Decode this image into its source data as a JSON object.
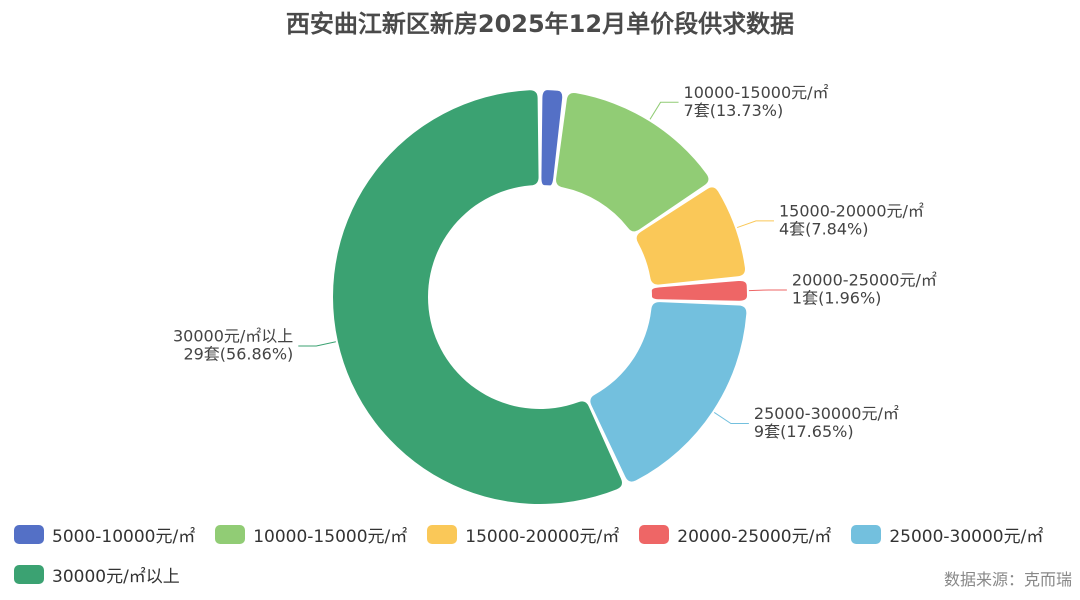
{
  "chart_data": {
    "type": "pie",
    "title": "西安曲江新区新房2025年12月单价段供求数据",
    "categories": [
      "5000-10000元/㎡",
      "10000-15000元/㎡",
      "15000-20000元/㎡",
      "20000-25000元/㎡",
      "25000-30000元/㎡",
      "30000元/㎡以上"
    ],
    "values": [
      1,
      7,
      4,
      1,
      9,
      29
    ],
    "percent_labels": [
      "1.96%",
      "13.73%",
      "7.84%",
      "1.96%",
      "17.65%",
      "56.86%"
    ],
    "unit": "套",
    "data_labels": [
      "",
      "10000-15000元/㎡\n7套(13.73%)",
      "15000-20000元/㎡\n4套(7.84%)",
      "20000-25000元/㎡\n1套(1.96%)",
      "25000-30000元/㎡\n9套(17.65%)",
      "30000元/㎡以上\n29套(56.86%)"
    ],
    "colors": [
      "#5470c6",
      "#91cc75",
      "#fac858",
      "#ee6666",
      "#73c0de",
      "#3ba272"
    ],
    "donut": true,
    "legend_position": "bottom-left"
  },
  "source": "数据来源：克而瑞"
}
